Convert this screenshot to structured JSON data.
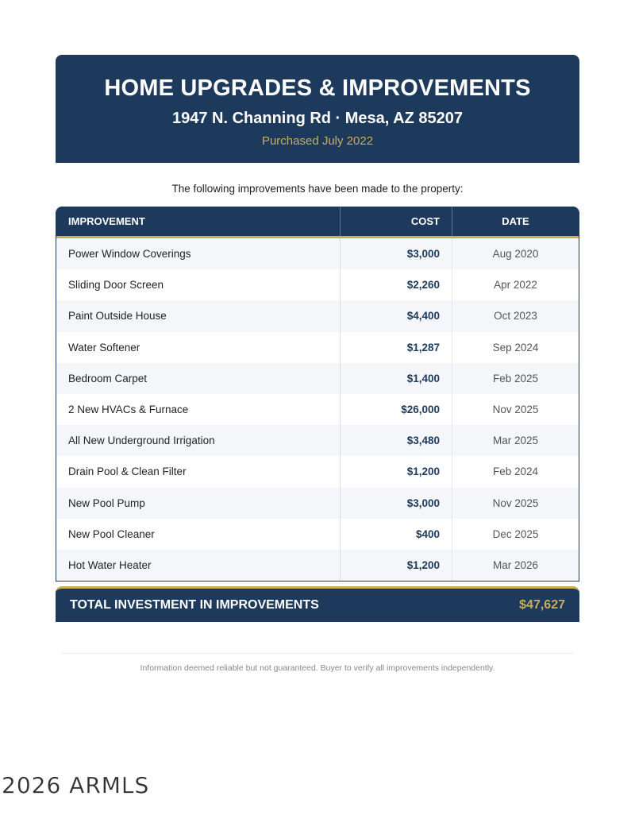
{
  "header": {
    "title": "HOME UPGRADES & IMPROVEMENTS",
    "address": "1947 N. Channing Rd · Mesa, AZ 85207",
    "purchased": "Purchased July 2022"
  },
  "intro": "The following improvements have been made to the property:",
  "table": {
    "columns": [
      "IMPROVEMENT",
      "COST",
      "DATE"
    ],
    "rows": [
      {
        "item": "Power Window Coverings",
        "cost": "$3,000",
        "date": "Aug 2020"
      },
      {
        "item": "Sliding Door Screen",
        "cost": "$2,260",
        "date": "Apr 2022"
      },
      {
        "item": "Paint Outside House",
        "cost": "$4,400",
        "date": "Oct 2023"
      },
      {
        "item": "Water Softener",
        "cost": "$1,287",
        "date": "Sep 2024"
      },
      {
        "item": "Bedroom Carpet",
        "cost": "$1,400",
        "date": "Feb 2025"
      },
      {
        "item": "2 New HVACs & Furnace",
        "cost": "$26,000",
        "date": "Nov 2025"
      },
      {
        "item": "All New Underground Irrigation",
        "cost": "$3,480",
        "date": "Mar 2025"
      },
      {
        "item": "Drain Pool & Clean Filter",
        "cost": "$1,200",
        "date": "Feb 2024"
      },
      {
        "item": "New Pool Pump",
        "cost": "$3,000",
        "date": "Nov 2025"
      },
      {
        "item": "New Pool Cleaner",
        "cost": "$400",
        "date": "Dec 2025"
      },
      {
        "item": "Hot Water Heater",
        "cost": "$1,200",
        "date": "Mar 2026"
      }
    ]
  },
  "total": {
    "label": "TOTAL INVESTMENT IN IMPROVEMENTS",
    "value": "$47,627"
  },
  "disclaimer": "Information deemed reliable but not guaranteed. Buyer to verify all improvements independently.",
  "watermark": "2026 ARMLS",
  "colors": {
    "navy": "#1d3a5c",
    "gold": "#c9ad5e"
  }
}
